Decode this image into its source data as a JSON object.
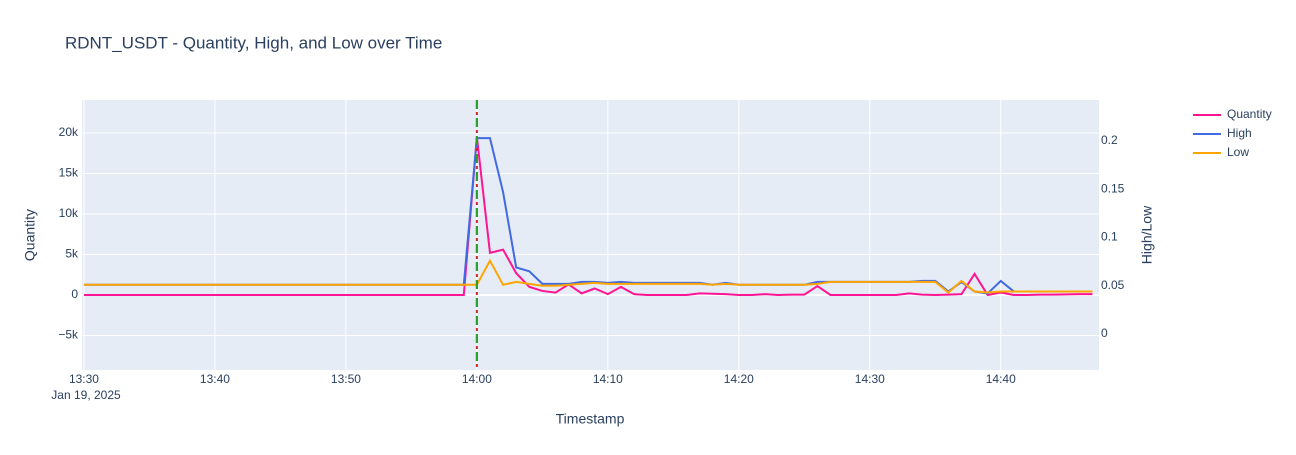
{
  "chart_data": {
    "type": "line",
    "title": "RDNT_USDT - Quantity, High, and Low over Time",
    "xlabel": "Timestamp",
    "ylabel": "Quantity",
    "y2label": "High/Low",
    "x_date_label": "Jan 19, 2025",
    "x": [
      "2025-01-19 13:30",
      "2025-01-19 13:31",
      "2025-01-19 13:32",
      "2025-01-19 13:33",
      "2025-01-19 13:34",
      "2025-01-19 13:35",
      "2025-01-19 13:36",
      "2025-01-19 13:37",
      "2025-01-19 13:38",
      "2025-01-19 13:39",
      "2025-01-19 13:40",
      "2025-01-19 13:41",
      "2025-01-19 13:42",
      "2025-01-19 13:43",
      "2025-01-19 13:44",
      "2025-01-19 13:45",
      "2025-01-19 13:46",
      "2025-01-19 13:47",
      "2025-01-19 13:48",
      "2025-01-19 13:49",
      "2025-01-19 13:50",
      "2025-01-19 13:51",
      "2025-01-19 13:52",
      "2025-01-19 13:53",
      "2025-01-19 13:54",
      "2025-01-19 13:55",
      "2025-01-19 13:56",
      "2025-01-19 13:57",
      "2025-01-19 13:58",
      "2025-01-19 13:59",
      "2025-01-19 14:00",
      "2025-01-19 14:01",
      "2025-01-19 14:02",
      "2025-01-19 14:03",
      "2025-01-19 14:04",
      "2025-01-19 14:05",
      "2025-01-19 14:06",
      "2025-01-19 14:07",
      "2025-01-19 14:08",
      "2025-01-19 14:09",
      "2025-01-19 14:10",
      "2025-01-19 14:11",
      "2025-01-19 14:12",
      "2025-01-19 14:13",
      "2025-01-19 14:14",
      "2025-01-19 14:15",
      "2025-01-19 14:16",
      "2025-01-19 14:17",
      "2025-01-19 14:18",
      "2025-01-19 14:19",
      "2025-01-19 14:20",
      "2025-01-19 14:21",
      "2025-01-19 14:22",
      "2025-01-19 14:23",
      "2025-01-19 14:24",
      "2025-01-19 14:25",
      "2025-01-19 14:26",
      "2025-01-19 14:27",
      "2025-01-19 14:28",
      "2025-01-19 14:29",
      "2025-01-19 14:30",
      "2025-01-19 14:31",
      "2025-01-19 14:32",
      "2025-01-19 14:33",
      "2025-01-19 14:34",
      "2025-01-19 14:35",
      "2025-01-19 14:36",
      "2025-01-19 14:37",
      "2025-01-19 14:38",
      "2025-01-19 14:39",
      "2025-01-19 14:40",
      "2025-01-19 14:41",
      "2025-01-19 14:42",
      "2025-01-19 14:43",
      "2025-01-19 14:44",
      "2025-01-19 14:45",
      "2025-01-19 14:46",
      "2025-01-19 14:47"
    ],
    "series": [
      {
        "name": "Quantity",
        "color": "#ff1493",
        "axis": "y",
        "values": [
          0,
          0,
          0,
          0,
          0,
          0,
          0,
          0,
          0,
          0,
          0,
          0,
          0,
          0,
          0,
          0,
          0,
          0,
          0,
          0,
          0,
          0,
          0,
          0,
          0,
          0,
          0,
          0,
          0,
          0,
          19500,
          5200,
          5600,
          2700,
          1000,
          500,
          300,
          1300,
          200,
          800,
          100,
          1000,
          100,
          0,
          0,
          0,
          0,
          200,
          150,
          100,
          0,
          0,
          100,
          0,
          50,
          50,
          1100,
          0,
          0,
          0,
          0,
          0,
          0,
          200,
          50,
          0,
          50,
          100,
          2600,
          0,
          300,
          0,
          0,
          50,
          50,
          80,
          100,
          100
        ]
      },
      {
        "name": "High",
        "color": "#4169e1",
        "axis": "y2",
        "values": [
          0.051,
          0.051,
          0.051,
          0.051,
          0.051,
          0.051,
          0.051,
          0.051,
          0.051,
          0.051,
          0.051,
          0.051,
          0.051,
          0.051,
          0.051,
          0.051,
          0.051,
          0.051,
          0.051,
          0.051,
          0.051,
          0.051,
          0.051,
          0.051,
          0.051,
          0.051,
          0.051,
          0.051,
          0.051,
          0.051,
          0.203,
          0.203,
          0.147,
          0.069,
          0.065,
          0.052,
          0.052,
          0.052,
          0.054,
          0.054,
          0.053,
          0.054,
          0.053,
          0.053,
          0.053,
          0.053,
          0.053,
          0.053,
          0.051,
          0.053,
          0.051,
          0.051,
          0.051,
          0.051,
          0.051,
          0.051,
          0.054,
          0.054,
          0.054,
          0.054,
          0.054,
          0.054,
          0.054,
          0.054,
          0.055,
          0.055,
          0.044,
          0.054,
          0.044,
          0.042,
          0.055,
          0.044,
          0.044,
          0.044,
          0.044,
          0.044,
          0.044,
          0.044
        ]
      },
      {
        "name": "Low",
        "color": "#ffa500",
        "axis": "y2",
        "values": [
          0.051,
          0.051,
          0.051,
          0.051,
          0.051,
          0.051,
          0.051,
          0.051,
          0.051,
          0.051,
          0.051,
          0.051,
          0.051,
          0.051,
          0.051,
          0.051,
          0.051,
          0.051,
          0.051,
          0.051,
          0.051,
          0.051,
          0.051,
          0.051,
          0.051,
          0.051,
          0.051,
          0.051,
          0.051,
          0.051,
          0.051,
          0.076,
          0.051,
          0.054,
          0.052,
          0.05,
          0.05,
          0.051,
          0.052,
          0.053,
          0.052,
          0.052,
          0.052,
          0.052,
          0.052,
          0.052,
          0.052,
          0.052,
          0.051,
          0.052,
          0.051,
          0.051,
          0.051,
          0.051,
          0.051,
          0.051,
          0.052,
          0.054,
          0.054,
          0.054,
          0.054,
          0.054,
          0.054,
          0.054,
          0.054,
          0.054,
          0.043,
          0.055,
          0.044,
          0.043,
          0.044,
          0.044,
          0.044,
          0.044,
          0.044,
          0.044,
          0.044,
          0.044
        ]
      }
    ],
    "vlines": [
      {
        "x": "2025-01-19 14:00",
        "color": "#d62728",
        "dash": "dashdot"
      },
      {
        "x": "2025-01-19 14:00",
        "color": "#2ca02c",
        "dash": "dash"
      }
    ],
    "xlim": [
      "2025-01-19 13:29:51",
      "2025-01-19 14:47:30"
    ],
    "xticks": [
      {
        "value": "2025-01-19 13:30",
        "label": "13:30"
      },
      {
        "value": "2025-01-19 13:40",
        "label": "13:40"
      },
      {
        "value": "2025-01-19 13:50",
        "label": "13:50"
      },
      {
        "value": "2025-01-19 14:00",
        "label": "14:00"
      },
      {
        "value": "2025-01-19 14:10",
        "label": "14:10"
      },
      {
        "value": "2025-01-19 14:20",
        "label": "14:20"
      },
      {
        "value": "2025-01-19 14:30",
        "label": "14:30"
      },
      {
        "value": "2025-01-19 14:40",
        "label": "14:40"
      }
    ],
    "ylim": [
      -9260,
      24070
    ],
    "yticks": [
      {
        "value": -5000,
        "label": "−5k"
      },
      0,
      {
        "value": 5000,
        "label": "5k"
      },
      {
        "value": 10000,
        "label": "10k"
      },
      {
        "value": 15000,
        "label": "15k"
      },
      {
        "value": 20000,
        "label": "20k"
      }
    ],
    "y2lim": [
      -0.0373,
      0.2425
    ],
    "y2ticks": [
      0,
      0.05,
      0.1,
      0.15,
      0.2
    ],
    "grid": true,
    "legend": "top-right",
    "background": "#e5ecf6"
  }
}
